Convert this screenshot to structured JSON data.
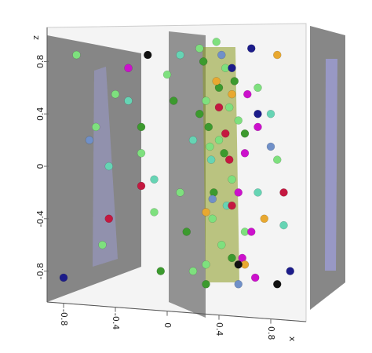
{
  "chart_data": {
    "type": "scatter",
    "xlabel": "x",
    "ylabel": "z",
    "xlim": [
      -1,
      1
    ],
    "ylim": [
      -1,
      1
    ],
    "xticks": [
      -0.8,
      -0.4,
      0,
      0.4,
      0.8
    ],
    "yticks": [
      0.8,
      0.4,
      0,
      -0.4,
      -0.8
    ],
    "series": [
      {
        "color": "#7ee07e",
        "x": [
          -0.7,
          -0.55,
          -0.4,
          -0.2,
          0.0,
          0.1,
          0.25,
          0.3,
          0.35,
          0.4,
          0.45,
          0.5,
          0.55,
          0.6,
          0.7,
          0.85,
          0.3,
          0.38,
          0.42,
          -0.5,
          -0.1,
          0.2,
          0.48,
          0.33
        ],
        "values": [
          0.85,
          0.3,
          0.55,
          0.1,
          0.7,
          -0.2,
          0.9,
          0.5,
          -0.4,
          0.2,
          0.75,
          -0.1,
          0.35,
          -0.5,
          0.6,
          0.05,
          -0.75,
          0.95,
          -0.6,
          -0.6,
          -0.35,
          -0.8,
          0.45,
          0.15
        ]
      },
      {
        "color": "#3c9a2e",
        "x": [
          -0.2,
          0.05,
          0.28,
          0.32,
          0.36,
          0.4,
          0.44,
          0.5,
          0.6,
          0.15,
          0.25,
          -0.05,
          0.52,
          0.3
        ],
        "values": [
          0.3,
          0.5,
          0.8,
          0.3,
          -0.2,
          0.6,
          0.1,
          -0.7,
          0.25,
          -0.5,
          0.4,
          -0.8,
          0.65,
          -0.9
        ]
      },
      {
        "color": "#66d4b4",
        "x": [
          -0.3,
          -0.1,
          0.2,
          0.34,
          0.46,
          0.7,
          0.8,
          0.9,
          -0.45,
          0.1
        ],
        "values": [
          0.5,
          -0.1,
          0.2,
          0.05,
          -0.3,
          -0.2,
          0.4,
          -0.45,
          0.0,
          0.85
        ]
      },
      {
        "color": "#cc11cc",
        "x": [
          0.55,
          0.6,
          0.65,
          0.58,
          0.7,
          0.62,
          -0.3,
          0.68
        ],
        "values": [
          -0.2,
          0.1,
          -0.5,
          -0.7,
          0.3,
          0.55,
          0.75,
          -0.85
        ]
      },
      {
        "color": "#c41840",
        "x": [
          0.45,
          0.5,
          0.48,
          -0.2,
          0.9,
          0.4,
          -0.45
        ],
        "values": [
          0.25,
          -0.3,
          0.05,
          -0.15,
          -0.2,
          0.45,
          -0.4
        ]
      },
      {
        "color": "#e8a830",
        "x": [
          0.38,
          0.5,
          0.85,
          0.6,
          0.3,
          0.75
        ],
        "values": [
          0.65,
          0.55,
          0.85,
          -0.75,
          -0.35,
          -0.4
        ]
      },
      {
        "color": "#1c1c8a",
        "x": [
          0.5,
          0.65,
          -0.8,
          0.7,
          0.95
        ],
        "values": [
          0.75,
          0.9,
          -0.85,
          0.4,
          -0.8
        ]
      },
      {
        "color": "#7090c8",
        "x": [
          0.42,
          0.55,
          -0.6,
          0.8,
          0.35
        ],
        "values": [
          0.85,
          -0.9,
          0.2,
          0.15,
          -0.25
        ]
      },
      {
        "color": "#111111",
        "x": [
          -0.15,
          0.55,
          0.85
        ],
        "values": [
          0.85,
          -0.75,
          -0.9
        ]
      }
    ]
  }
}
